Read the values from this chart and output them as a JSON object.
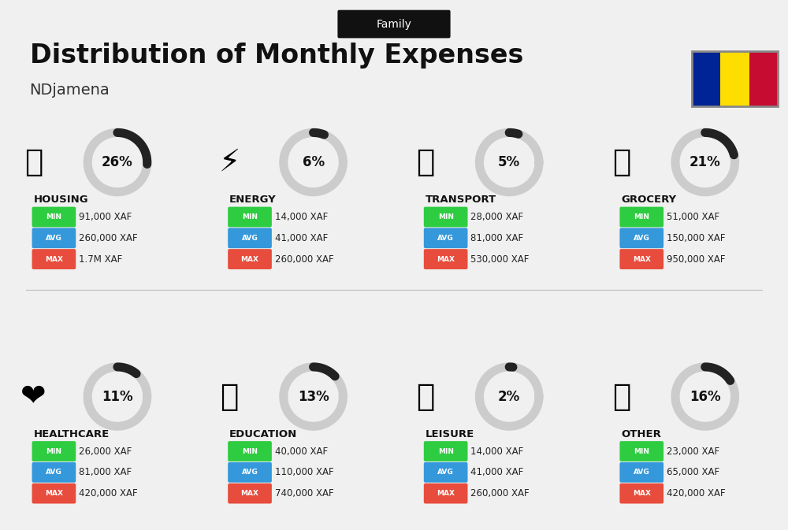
{
  "title": "Distribution of Monthly Expenses",
  "subtitle": "NDjamena",
  "header_label": "Family",
  "bg_color": "#f0f0f0",
  "categories": [
    {
      "name": "HOUSING",
      "pct": 26,
      "min": "91,000 XAF",
      "avg": "260,000 XAF",
      "max": "1.7M XAF",
      "emoji": "🏢",
      "row": 0,
      "col": 0
    },
    {
      "name": "ENERGY",
      "pct": 6,
      "min": "14,000 XAF",
      "avg": "41,000 XAF",
      "max": "260,000 XAF",
      "emoji": "⚡",
      "row": 0,
      "col": 1
    },
    {
      "name": "TRANSPORT",
      "pct": 5,
      "min": "28,000 XAF",
      "avg": "81,000 XAF",
      "max": "530,000 XAF",
      "emoji": "🚌",
      "row": 0,
      "col": 2
    },
    {
      "name": "GROCERY",
      "pct": 21,
      "min": "51,000 XAF",
      "avg": "150,000 XAF",
      "max": "950,000 XAF",
      "emoji": "🛒",
      "row": 0,
      "col": 3
    },
    {
      "name": "HEALTHCARE",
      "pct": 11,
      "min": "26,000 XAF",
      "avg": "81,000 XAF",
      "max": "420,000 XAF",
      "emoji": "❤",
      "row": 1,
      "col": 0
    },
    {
      "name": "EDUCATION",
      "pct": 13,
      "min": "40,000 XAF",
      "avg": "110,000 XAF",
      "max": "740,000 XAF",
      "emoji": "🎓",
      "row": 1,
      "col": 1
    },
    {
      "name": "LEISURE",
      "pct": 2,
      "min": "14,000 XAF",
      "avg": "41,000 XAF",
      "max": "260,000 XAF",
      "emoji": "🛍",
      "row": 1,
      "col": 2
    },
    {
      "name": "OTHER",
      "pct": 16,
      "min": "23,000 XAF",
      "avg": "65,000 XAF",
      "max": "420,000 XAF",
      "emoji": "💰",
      "row": 1,
      "col": 3
    }
  ],
  "flag_colors": [
    "#002395",
    "#FEDD00",
    "#C60C30"
  ],
  "min_color": "#2ecc40",
  "avg_color": "#3498db",
  "max_color": "#e74c3c",
  "label_text_color": "#ffffff",
  "value_text_color": "#222222"
}
